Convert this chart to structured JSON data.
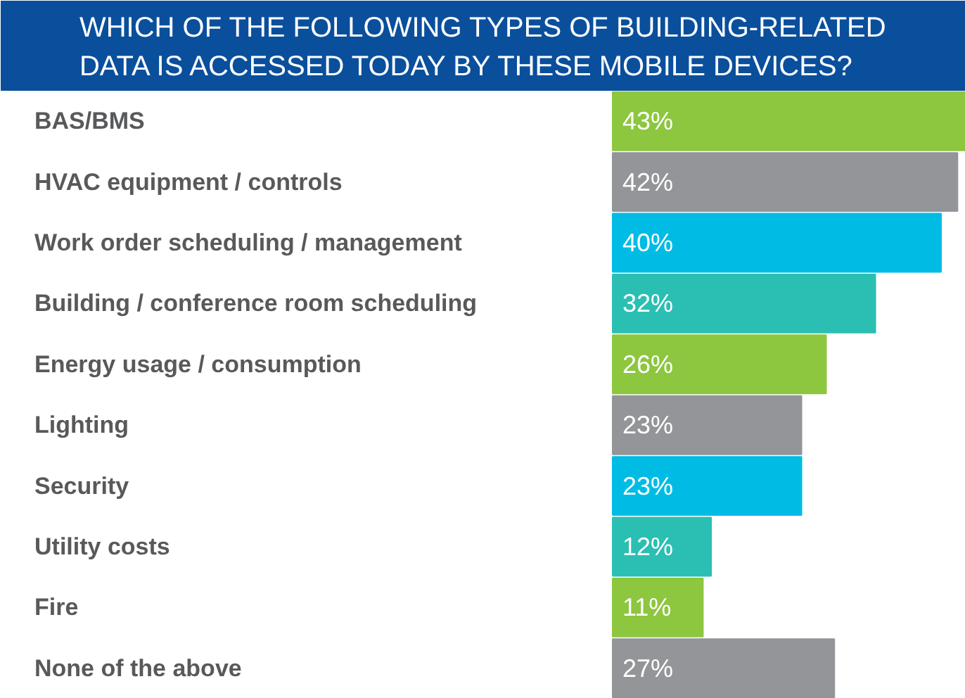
{
  "chart_data": {
    "type": "bar",
    "orientation": "horizontal",
    "title": "WHICH OF THE FOLLOWING TYPES OF BUILDING-RELATED DATA IS ACCESSED TODAY BY THESE MOBILE DEVICES?",
    "categories": [
      "BAS/BMS",
      "HVAC equipment / controls",
      "Work order scheduling / management",
      "Building / conference room scheduling",
      "Energy usage / consumption",
      "Lighting",
      "Security",
      "Utility costs",
      "Fire",
      "None of the above"
    ],
    "values": [
      43,
      42,
      40,
      32,
      26,
      23,
      23,
      12,
      11,
      27
    ],
    "value_labels": [
      "43%",
      "42%",
      "40%",
      "32%",
      "26%",
      "23%",
      "23%",
      "12%",
      "11%",
      "27%"
    ],
    "colors": [
      "#8dc63f",
      "#939598",
      "#00bce4",
      "#2bbfb3",
      "#8dc63f",
      "#939598",
      "#00bce4",
      "#2bbfb3",
      "#8dc63f",
      "#939598"
    ],
    "grid": false
  }
}
